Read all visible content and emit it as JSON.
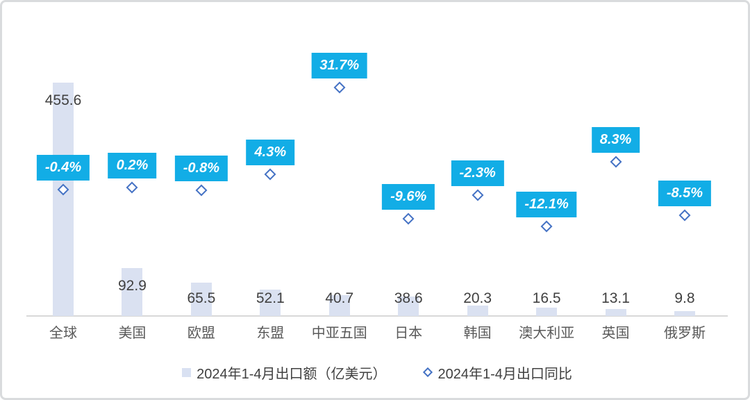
{
  "chart_data": {
    "type": "bar",
    "categories": [
      "全球",
      "美国",
      "欧盟",
      "东盟",
      "中亚五国",
      "日本",
      "韩国",
      "澳大利亚",
      "英国",
      "俄罗斯"
    ],
    "series": [
      {
        "name": "2024年1-4月出口额（亿美元）",
        "type": "bar",
        "values": [
          455.6,
          92.9,
          65.5,
          52.1,
          40.7,
          38.6,
          20.3,
          16.5,
          13.1,
          9.8
        ],
        "value_labels": [
          "455.6",
          "92.9",
          "65.5",
          "52.1",
          "40.7",
          "38.6",
          "20.3",
          "16.5",
          "13.1",
          "9.8"
        ]
      },
      {
        "name": "2024年1-4月出口同比",
        "type": "scatter",
        "unit": "%",
        "values": [
          -0.4,
          0.2,
          -0.8,
          4.3,
          31.7,
          -9.6,
          -2.3,
          -12.1,
          8.3,
          -8.5
        ],
        "value_labels": [
          "-0.4%",
          "0.2%",
          "-0.8%",
          "4.3%",
          "31.7%",
          "-9.6%",
          "-2.3%",
          "-12.1%",
          "8.3%",
          "-8.5%"
        ]
      }
    ],
    "title": "",
    "xlabel": "",
    "ylabel": "",
    "grid": false,
    "legend_position": "bottom",
    "colors": {
      "bar_fill": "#dae1f1",
      "marker_stroke": "#4472c4",
      "pct_label_bg": "#12ade6",
      "pct_label_text": "#ffffff",
      "value_label_text": "#404040",
      "category_text": "#595959",
      "axis_line": "#d8d8d8"
    }
  }
}
